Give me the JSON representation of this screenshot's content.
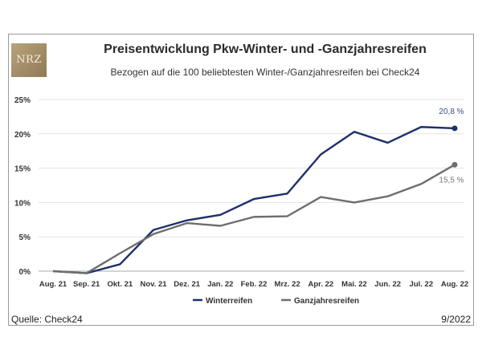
{
  "header": {
    "title": "Preisentwicklung Pkw-Winter- und -Ganzjahresreifen",
    "subtitle": "Bezogen auf die 100 beliebtesten Winter-/Ganzjahresreifen bei Check24"
  },
  "logo": {
    "text": "NRZ"
  },
  "footer": {
    "source": "Quelle: Check24",
    "date": "9/2022"
  },
  "chart_data": {
    "type": "line",
    "title": "Preisentwicklung Pkw-Winter- und -Ganzjahresreifen",
    "subtitle": "Bezogen auf die 100 beliebtesten Winter-/Ganzjahresreifen bei Check24",
    "categories": [
      "Aug. 21",
      "Sep. 21",
      "Okt. 21",
      "Nov. 21",
      "Dez. 21",
      "Jan. 22",
      "Feb. 22",
      "Mrz. 22",
      "Apr. 22",
      "Mai. 22",
      "Jun. 22",
      "Jul. 22",
      "Aug. 22"
    ],
    "ylim": [
      0,
      25
    ],
    "yticks": [
      0,
      5,
      10,
      15,
      20,
      25
    ],
    "ytick_labels": [
      "0%",
      "5%",
      "10%",
      "15%",
      "20%",
      "25%"
    ],
    "grid": true,
    "legend_position": "bottom",
    "series": [
      {
        "name": "Winterreifen",
        "color": "#1f2f6b",
        "values": [
          0,
          -0.3,
          1.0,
          6.0,
          7.4,
          8.2,
          10.5,
          11.3,
          17.0,
          20.3,
          18.7,
          21.0,
          20.8
        ],
        "end_label": "20,8 %"
      },
      {
        "name": "Ganzjahresreifen",
        "color": "#6e6e6e",
        "values": [
          0,
          -0.3,
          2.6,
          5.4,
          7.0,
          6.6,
          7.9,
          8.0,
          10.8,
          10.0,
          10.9,
          12.7,
          15.5
        ],
        "end_label": "15,5 %"
      }
    ]
  }
}
